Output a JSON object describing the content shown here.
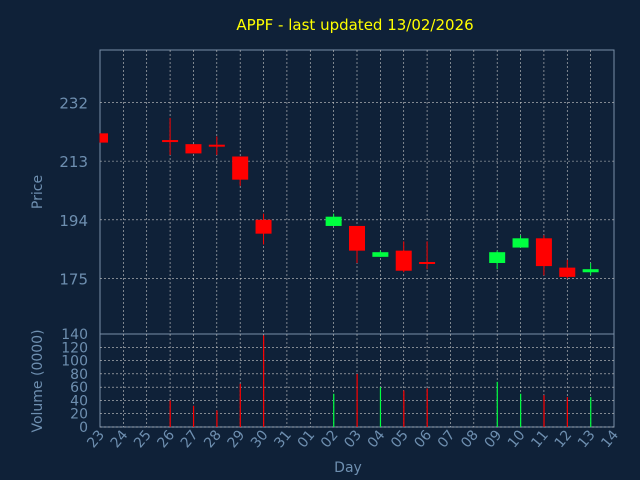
{
  "title": "APPF - last updated 13/02/2026",
  "colors": {
    "background": "#0f2138",
    "title": "#ffff00",
    "axis_text": "#6e8fb0",
    "frame": "#7a8ea8",
    "grid": "#c8c8c8",
    "up": "#00ff40",
    "down": "#ff0000"
  },
  "chart_data": [
    {
      "type": "candlestick",
      "ylabel": "Price",
      "yticks": [
        175,
        194,
        213,
        232
      ],
      "ylim": [
        157,
        249
      ],
      "grid": true,
      "series": [
        {
          "day": "23",
          "open": 222,
          "high": 222,
          "low": 219,
          "close": 219
        },
        {
          "day": "26",
          "open": 219.5,
          "high": 227,
          "low": 215,
          "close": 219
        },
        {
          "day": "27",
          "open": 218.5,
          "high": 218.5,
          "low": 215.5,
          "close": 215.5
        },
        {
          "day": "28",
          "open": 218,
          "high": 221,
          "low": 215,
          "close": 217.5
        },
        {
          "day": "29",
          "open": 214.5,
          "high": 214.5,
          "low": 205,
          "close": 207
        },
        {
          "day": "30",
          "open": 194,
          "high": 196,
          "low": 186,
          "close": 189.5
        },
        {
          "day": "02",
          "open": 192,
          "high": 196,
          "low": 192,
          "close": 195
        },
        {
          "day": "03",
          "open": 192,
          "high": 192,
          "low": 180,
          "close": 184
        },
        {
          "day": "04",
          "open": 182,
          "high": 184,
          "low": 182,
          "close": 183.5
        },
        {
          "day": "05",
          "open": 184,
          "high": 187,
          "low": 177,
          "close": 177.5
        },
        {
          "day": "06",
          "open": 180,
          "high": 187,
          "low": 178,
          "close": 179.5
        },
        {
          "day": "09",
          "open": 180,
          "high": 184,
          "low": 178,
          "close": 183.5
        },
        {
          "day": "10",
          "open": 185,
          "high": 189,
          "low": 185,
          "close": 188
        },
        {
          "day": "11",
          "open": 188,
          "high": 189,
          "low": 176,
          "close": 179
        },
        {
          "day": "12",
          "open": 178.5,
          "high": 181,
          "low": 175,
          "close": 175.5
        },
        {
          "day": "13",
          "open": 177,
          "high": 180,
          "low": 176,
          "close": 178
        }
      ]
    },
    {
      "type": "bar",
      "ylabel": "Volume (0000)",
      "yticks": [
        0,
        20,
        40,
        60,
        80,
        100,
        120,
        140
      ],
      "ylim": [
        0,
        140
      ],
      "xlabel": "Day",
      "categories": [
        "23",
        "24",
        "25",
        "26",
        "27",
        "28",
        "29",
        "30",
        "31",
        "01",
        "02",
        "03",
        "04",
        "05",
        "06",
        "07",
        "08",
        "09",
        "10",
        "11",
        "12",
        "13",
        "14"
      ],
      "volumes": [
        {
          "day": "26",
          "value": 40,
          "direction": "down"
        },
        {
          "day": "27",
          "value": 32,
          "direction": "down"
        },
        {
          "day": "28",
          "value": 25,
          "direction": "down"
        },
        {
          "day": "29",
          "value": 65,
          "direction": "down"
        },
        {
          "day": "30",
          "value": 138,
          "direction": "down"
        },
        {
          "day": "02",
          "value": 50,
          "direction": "up"
        },
        {
          "day": "03",
          "value": 80,
          "direction": "down"
        },
        {
          "day": "04",
          "value": 60,
          "direction": "up"
        },
        {
          "day": "05",
          "value": 55,
          "direction": "down"
        },
        {
          "day": "06",
          "value": 58,
          "direction": "down"
        },
        {
          "day": "09",
          "value": 68,
          "direction": "up"
        },
        {
          "day": "10",
          "value": 50,
          "direction": "up"
        },
        {
          "day": "11",
          "value": 48,
          "direction": "down"
        },
        {
          "day": "12",
          "value": 45,
          "direction": "down"
        },
        {
          "day": "13",
          "value": 45,
          "direction": "up"
        }
      ]
    }
  ]
}
